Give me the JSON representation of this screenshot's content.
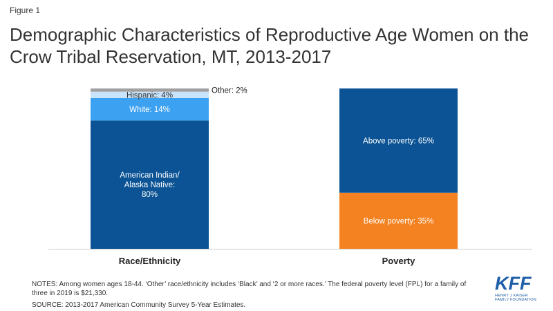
{
  "figure_label": "Figure 1",
  "title": "Demographic Characteristics of Reproductive Age Women on the Crow Tribal Reservation, MT, 2013-2017",
  "chart_data": {
    "type": "bar",
    "stacked": true,
    "unit": "%",
    "categories": [
      "Race/Ethnicity",
      "Poverty"
    ],
    "bars": [
      {
        "category": "Race/Ethnicity",
        "segments": [
          {
            "name": "American Indian/ Alaska Native",
            "value": 80,
            "label_lines": [
              "American Indian/",
              "Alaska Native:",
              "80%"
            ],
            "color": "#0b5394"
          },
          {
            "name": "White",
            "value": 14,
            "label_lines": [
              "White: 14%"
            ],
            "color": "#3da1f2"
          },
          {
            "name": "Hispanic",
            "value": 4,
            "label_lines": [
              "Hispanic: 4%"
            ],
            "color": "#c9e3fa"
          },
          {
            "name": "Other",
            "value": 2,
            "label_lines": [
              "Other: 2%"
            ],
            "color": "#a0a0a0"
          }
        ]
      },
      {
        "category": "Poverty",
        "segments": [
          {
            "name": "Below poverty",
            "value": 35,
            "label_lines": [
              "Below poverty: 35%"
            ],
            "color": "#f58220"
          },
          {
            "name": "Above poverty",
            "value": 65,
            "label_lines": [
              "Above poverty: 65%"
            ],
            "color": "#0b5394"
          }
        ]
      }
    ],
    "ylim": [
      0,
      100
    ],
    "grid": false,
    "legend": "none"
  },
  "notes": "NOTES: Among women ages 18-44. ‘Other’ race/ethnicity includes ‘Black’ and ‘2 or more races.’ The federal poverty level (FPL) for a family of three in 2019 is $21,330.",
  "source": "SOURCE: 2013-2017 American Community Survey 5-Year Estimates.",
  "logo": {
    "text": "KFF",
    "subtitle": "HENRY J KAISER FAMILY FOUNDATION",
    "color": "#1f5ea8"
  }
}
